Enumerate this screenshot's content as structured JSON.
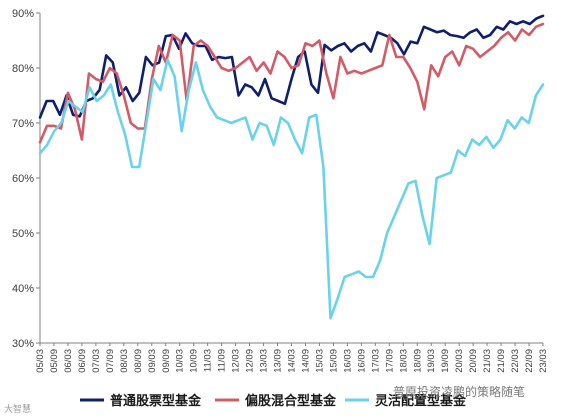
{
  "chart_data": {
    "type": "line",
    "title": "",
    "xlabel": "",
    "ylabel": "",
    "ylim": [
      30,
      90
    ],
    "yticks": [
      "30%",
      "40%",
      "50%",
      "60%",
      "70%",
      "80%",
      "90%"
    ],
    "x_tick_labels": [
      "05/03",
      "05/09",
      "06/03",
      "06/09",
      "07/03",
      "07/09",
      "08/03",
      "08/09",
      "09/03",
      "09/09",
      "10/03",
      "10/09",
      "11/03",
      "11/09",
      "12/03",
      "12/09",
      "13/03",
      "13/09",
      "14/03",
      "14/09",
      "15/03",
      "15/09",
      "16/03",
      "16/09",
      "17/03",
      "17/09",
      "18/03",
      "18/09",
      "19/03",
      "19/09",
      "20/03",
      "20/09",
      "21/03",
      "21/09",
      "22/03",
      "22/09",
      "23/03"
    ],
    "legend_position": "bottom",
    "grid": false,
    "series": [
      {
        "name": "普通股票型基金",
        "color": "#0f1f6e",
        "values": [
          71.0,
          74.0,
          74.0,
          71.5,
          75.0,
          71.5,
          71.2,
          74.0,
          74.5,
          76.0,
          82.3,
          81.0,
          75.0,
          76.5,
          74.0,
          75.5,
          82.0,
          80.5,
          81.0,
          85.8,
          86.0,
          83.5,
          86.3,
          84.5,
          84.0,
          84.0,
          81.5,
          82.0,
          81.8,
          82.0,
          75.0,
          77.0,
          76.5,
          75.0,
          78.0,
          74.5,
          74.0,
          73.5,
          78.0,
          82.0,
          83.0,
          77.0,
          75.5,
          84.2,
          83.2,
          84.0,
          84.5,
          83.0,
          84.0,
          84.5,
          83.0,
          86.5,
          86.0,
          85.5,
          84.5,
          82.5,
          84.8,
          84.5,
          87.5,
          87.0,
          86.5,
          86.8,
          86.0,
          85.8,
          85.5,
          86.5,
          87.0,
          85.5,
          86.0,
          87.5,
          87.0,
          88.5,
          88.0,
          88.5,
          88.0,
          89.0,
          89.5
        ]
      },
      {
        "name": "偏股混合型基金",
        "color": "#d35b66",
        "values": [
          66.5,
          69.5,
          69.5,
          69.0,
          75.5,
          72.5,
          67.0,
          79.0,
          78.0,
          77.5,
          80.0,
          79.0,
          75.0,
          70.0,
          69.0,
          69.0,
          78.0,
          84.0,
          81.0,
          86.0,
          85.0,
          74.0,
          84.0,
          85.0,
          84.0,
          82.0,
          80.0,
          79.5,
          80.0,
          81.0,
          82.0,
          79.5,
          81.0,
          79.0,
          83.0,
          82.0,
          80.0,
          80.5,
          84.5,
          84.0,
          85.0,
          79.0,
          74.5,
          82.0,
          79.0,
          79.5,
          79.0,
          79.5,
          80.0,
          80.5,
          86.0,
          82.0,
          82.0,
          80.0,
          77.5,
          72.5,
          80.5,
          78.5,
          82.0,
          83.0,
          80.5,
          84.0,
          83.5,
          82.0,
          83.0,
          84.0,
          85.5,
          86.5,
          85.0,
          87.0,
          86.0,
          87.5,
          88.0
        ]
      },
      {
        "name": "灵活配置型基金",
        "color": "#6ad2ea",
        "values": [
          64.5,
          66.0,
          68.5,
          70.0,
          74.0,
          73.0,
          72.0,
          76.5,
          74.0,
          75.0,
          77.0,
          72.0,
          68.0,
          62.0,
          62.0,
          70.0,
          78.0,
          76.0,
          81.5,
          78.5,
          68.5,
          76.0,
          81.0,
          76.0,
          73.0,
          71.0,
          70.5,
          70.0,
          70.5,
          71.0,
          67.0,
          70.0,
          69.5,
          66.0,
          71.0,
          70.0,
          67.0,
          64.5,
          71.0,
          71.5,
          62.0,
          34.5,
          38.0,
          42.0,
          42.5,
          43.0,
          42.0,
          42.0,
          45.0,
          50.0,
          53.0,
          56.0,
          59.0,
          59.5,
          53.0,
          48.0,
          60.0,
          60.5,
          61.0,
          65.0,
          64.0,
          67.0,
          66.0,
          67.5,
          65.5,
          67.0,
          70.5,
          69.0,
          71.0,
          70.0,
          75.0,
          77.0
        ]
      }
    ]
  },
  "watermark": {
    "left_text": "大智慧",
    "right_text": "普原投资凌鹏的策略随笔"
  }
}
